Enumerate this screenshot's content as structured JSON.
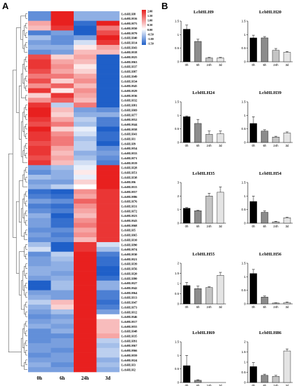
{
  "panels": {
    "a": "A",
    "b": "B"
  },
  "chart_data": [
    {
      "type": "heatmap",
      "columns": [
        "0h",
        "6h",
        "24h",
        "3d"
      ],
      "legend": {
        "ticks": [
          "2.00",
          "1.50",
          "1.00",
          "0.50",
          "0.00",
          "-0.50",
          "-1.00",
          "-1.50"
        ],
        "high_color": "#e8201f",
        "mid_color": "#ffffff",
        "low_color": "#1f5fc8"
      },
      "rows": [
        {
          "gene": "LcbHLH8",
          "values": [
            -0.7,
            2.0,
            -0.5,
            -0.5
          ]
        },
        {
          "gene": "LcbHLH16",
          "values": [
            -0.7,
            2.0,
            -0.5,
            -0.5
          ]
        },
        {
          "gene": "LcbHLH75",
          "values": [
            0.4,
            1.0,
            -0.9,
            1.0
          ]
        },
        {
          "gene": "LcbHLH50",
          "values": [
            0.3,
            0.9,
            -1.4,
            0.6
          ]
        },
        {
          "gene": "LcbHLH79",
          "values": [
            -0.8,
            -0.6,
            -1.0,
            0.8
          ]
        },
        {
          "gene": "LcbHLH40",
          "values": [
            -0.4,
            -0.7,
            -0.6,
            1.0
          ]
        },
        {
          "gene": "LcbHLH14",
          "values": [
            -0.6,
            -0.7,
            -0.2,
            0.9
          ]
        },
        {
          "gene": "LcbHLH43",
          "values": [
            -0.5,
            -0.5,
            0.1,
            0.4
          ]
        },
        {
          "gene": "LcbHLH18",
          "values": [
            -0.7,
            -0.6,
            0.3,
            0.3
          ]
        },
        {
          "gene": "LcbHLH25",
          "values": [
            0.8,
            0.2,
            0.4,
            -1.4
          ]
        },
        {
          "gene": "LcbHLH63",
          "values": [
            0.9,
            0.4,
            0.3,
            -1.4
          ]
        },
        {
          "gene": "LcbHLH37",
          "values": [
            0.9,
            0.5,
            0.1,
            -1.4
          ]
        },
        {
          "gene": "LcbHLH87",
          "values": [
            0.8,
            0.4,
            0.2,
            -1.4
          ]
        },
        {
          "gene": "LcbHLH49",
          "values": [
            0.6,
            0.6,
            0.4,
            -1.3
          ]
        },
        {
          "gene": "LcbHLH34",
          "values": [
            0.8,
            0.2,
            0.5,
            -1.4
          ]
        },
        {
          "gene": "LcbHLH45",
          "values": [
            0.5,
            0.7,
            0.3,
            -1.4
          ]
        },
        {
          "gene": "LcbHLH29",
          "values": [
            0.9,
            0.1,
            0.5,
            -1.4
          ]
        },
        {
          "gene": "LcbHLH36",
          "values": [
            0.2,
            0.9,
            0.4,
            -1.4
          ]
        },
        {
          "gene": "LcbHLH32",
          "values": [
            0.5,
            0.7,
            0.3,
            -1.4
          ]
        },
        {
          "gene": "LcbHLH81",
          "values": [
            0.9,
            -0.3,
            0.6,
            -1.0
          ]
        },
        {
          "gene": "LcbHLH69",
          "values": [
            1.0,
            0.3,
            -0.6,
            -0.7
          ]
        },
        {
          "gene": "LcbHLH77",
          "values": [
            1.0,
            0.2,
            -0.5,
            -0.5
          ]
        },
        {
          "gene": "LcbHLH52",
          "values": [
            0.9,
            0.4,
            -0.3,
            -0.8
          ]
        },
        {
          "gene": "LcbHLH44",
          "values": [
            0.8,
            0.6,
            -0.4,
            -0.8
          ]
        },
        {
          "gene": "LcbHLH58",
          "values": [
            1.0,
            0.2,
            -0.1,
            -1.0
          ]
        },
        {
          "gene": "LcbHLH41",
          "values": [
            0.9,
            0.5,
            -0.2,
            -0.9
          ]
        },
        {
          "gene": "LcbHLH1",
          "values": [
            0.9,
            0.6,
            -0.4,
            -0.9
          ]
        },
        {
          "gene": "LcbHLH9",
          "values": [
            0.8,
            0.6,
            -0.3,
            -1.0
          ]
        },
        {
          "gene": "LcbHLH54",
          "values": [
            0.9,
            0.4,
            -0.3,
            -0.7
          ]
        },
        {
          "gene": "LcbHLH33",
          "values": [
            0.9,
            0.3,
            -0.5,
            -0.6
          ]
        },
        {
          "gene": "LcbHLH71",
          "values": [
            0.8,
            0.4,
            -0.4,
            -0.7
          ]
        },
        {
          "gene": "LcbHLH19",
          "values": [
            0.9,
            0.3,
            -0.2,
            -0.8
          ]
        },
        {
          "gene": "LcbHLH28",
          "values": [
            -0.6,
            -0.4,
            -0.1,
            1.0
          ]
        },
        {
          "gene": "LcbHLH51",
          "values": [
            -0.7,
            -0.5,
            0.1,
            1.0
          ]
        },
        {
          "gene": "LcbHLH38",
          "values": [
            -0.4,
            -0.5,
            -0.1,
            1.0
          ]
        },
        {
          "gene": "LcbHLH6",
          "values": [
            -0.6,
            -0.6,
            0.2,
            1.0
          ]
        },
        {
          "gene": "LcbHLH15",
          "values": [
            -0.5,
            -0.3,
            0.0,
            1.0
          ]
        },
        {
          "gene": "LcbHLH57",
          "values": [
            -0.9,
            -1.0,
            0.5,
            0.9
          ]
        },
        {
          "gene": "LcbHLH86",
          "values": [
            -0.8,
            -0.9,
            0.4,
            0.9
          ]
        },
        {
          "gene": "LcbHLH76",
          "values": [
            -0.6,
            -0.7,
            0.7,
            0.9
          ]
        },
        {
          "gene": "LcbHLH31",
          "values": [
            -0.8,
            -0.9,
            0.5,
            0.9
          ]
        },
        {
          "gene": "LcbHLH72",
          "values": [
            -0.7,
            -0.8,
            0.4,
            0.9
          ]
        },
        {
          "gene": "LcbHLH23",
          "values": [
            -0.5,
            -1.2,
            0.3,
            0.9
          ]
        },
        {
          "gene": "LcbHLH43",
          "values": [
            -0.6,
            -0.9,
            0.5,
            0.9
          ]
        },
        {
          "gene": "LcbHLH68",
          "values": [
            -0.6,
            -0.9,
            0.6,
            0.9
          ]
        },
        {
          "gene": "LcbHLH5",
          "values": [
            -0.7,
            -0.7,
            0.4,
            0.9
          ]
        },
        {
          "gene": "LcbHLH65",
          "values": [
            -0.6,
            -0.8,
            0.5,
            0.9
          ]
        },
        {
          "gene": "LcbHLH10",
          "values": [
            -0.7,
            -0.7,
            0.3,
            0.9
          ]
        },
        {
          "gene": "LcbHLH90",
          "values": [
            -0.4,
            -1.2,
            0.9,
            -0.2
          ]
        },
        {
          "gene": "LcbHLH74",
          "values": [
            -0.2,
            -1.4,
            0.9,
            -0.4
          ]
        },
        {
          "gene": "LcbHLH30",
          "values": [
            -0.7,
            -0.3,
            1.0,
            -0.8
          ]
        },
        {
          "gene": "LcbHLH21",
          "values": [
            -0.6,
            -0.4,
            1.0,
            -0.9
          ]
        },
        {
          "gene": "LcbHLH39",
          "values": [
            -0.6,
            -0.5,
            1.0,
            -0.9
          ]
        },
        {
          "gene": "LcbHLH56",
          "values": [
            -0.5,
            -0.5,
            1.0,
            -1.0
          ]
        },
        {
          "gene": "LcbHLH20",
          "values": [
            -0.5,
            -0.6,
            1.0,
            -1.0
          ]
        },
        {
          "gene": "LcbHLH80",
          "values": [
            -0.6,
            -0.5,
            1.0,
            -0.9
          ]
        },
        {
          "gene": "LcbHLH27",
          "values": [
            -1.0,
            -0.4,
            1.0,
            -0.5
          ]
        },
        {
          "gene": "LcbHLH42",
          "values": [
            -1.0,
            -0.4,
            1.0,
            -0.5
          ]
        },
        {
          "gene": "LcbHLH64",
          "values": [
            -0.6,
            -0.6,
            1.0,
            -0.8
          ]
        },
        {
          "gene": "LcbHLH13",
          "values": [
            -0.5,
            -0.6,
            1.0,
            -0.8
          ]
        },
        {
          "gene": "LcbHLH47",
          "values": [
            -0.3,
            0.3,
            1.0,
            -0.9
          ]
        },
        {
          "gene": "LcbHLH73",
          "values": [
            -0.5,
            0.2,
            1.0,
            -0.8
          ]
        },
        {
          "gene": "LcbHLH12",
          "values": [
            -0.6,
            -0.4,
            1.0,
            -0.6
          ]
        },
        {
          "gene": "LcbHLH46",
          "values": [
            -0.7,
            -0.6,
            1.0,
            0.0
          ]
        },
        {
          "gene": "LcbHLH17",
          "values": [
            -0.6,
            -0.5,
            1.0,
            0.3
          ]
        },
        {
          "gene": "LcbHLH55",
          "values": [
            -0.5,
            -0.6,
            1.0,
            0.3
          ]
        },
        {
          "gene": "LcbHLH48",
          "values": [
            -0.7,
            -0.5,
            1.0,
            0.3
          ]
        },
        {
          "gene": "LcbHLH35",
          "values": [
            -0.7,
            -0.7,
            1.0,
            0.4
          ]
        },
        {
          "gene": "LcbHLH91",
          "values": [
            -0.7,
            -0.6,
            1.0,
            -0.3
          ]
        },
        {
          "gene": "LcbHLH67",
          "values": [
            -0.6,
            -0.6,
            1.0,
            -0.4
          ]
        },
        {
          "gene": "LcbHLH66",
          "values": [
            -0.6,
            -0.7,
            1.0,
            -0.3
          ]
        },
        {
          "gene": "LcbHLH59",
          "values": [
            -0.7,
            -0.6,
            1.0,
            -0.3
          ]
        },
        {
          "gene": "LcbHLH24",
          "values": [
            -0.6,
            -0.6,
            1.0,
            -0.5
          ]
        },
        {
          "gene": "LcbHLH3",
          "values": [
            -0.5,
            -0.7,
            1.0,
            -0.4
          ]
        },
        {
          "gene": "LcbHLH2",
          "values": [
            -0.6,
            -0.6,
            1.0,
            -0.5
          ]
        }
      ]
    },
    {
      "type": "bar",
      "title": "LcbHLH9",
      "categories": [
        "0h",
        "6h",
        "24h",
        "3d"
      ],
      "values": [
        1.2,
        0.75,
        0.14,
        0.14
      ],
      "errors": [
        0.15,
        0.08,
        0.02,
        0.02
      ],
      "colors": [
        "#000000",
        "#8c8c8c",
        "#c4c4c4",
        "#e4e4e4"
      ],
      "ylim": [
        0,
        1.5
      ],
      "yticks": [
        0,
        0.5,
        1,
        1.5
      ]
    },
    {
      "type": "bar",
      "title": "LcbHLH20",
      "categories": [
        "0h",
        "6h",
        "24h",
        "3d"
      ],
      "values": [
        0.88,
        0.88,
        0.42,
        0.35
      ],
      "errors": [
        0.1,
        0.05,
        0.07,
        0.03
      ],
      "colors": [
        "#000000",
        "#8c8c8c",
        "#c4c4c4",
        "#e4e4e4"
      ],
      "ylim": [
        0,
        1.5
      ],
      "yticks": [
        0,
        0.5,
        1,
        1.5
      ]
    },
    {
      "type": "bar",
      "title": "LcbHLH24",
      "categories": [
        "0h",
        "6h",
        "24h",
        "3d"
      ],
      "values": [
        0.95,
        0.7,
        0.3,
        0.32
      ],
      "errors": [
        0.03,
        0.15,
        0.12,
        0.1
      ],
      "colors": [
        "#000000",
        "#8c8c8c",
        "#c4c4c4",
        "#e4e4e4"
      ],
      "ylim": [
        0,
        1.5
      ],
      "yticks": [
        0,
        0.5,
        1,
        1.5
      ]
    },
    {
      "type": "bar",
      "title": "LcbHLH39",
      "categories": [
        "0h",
        "6h",
        "24h",
        "3d"
      ],
      "values": [
        0.7,
        0.42,
        0.2,
        0.35
      ],
      "errors": [
        0.25,
        0.05,
        0.03,
        0.04
      ],
      "colors": [
        "#000000",
        "#8c8c8c",
        "#c4c4c4",
        "#e4e4e4"
      ],
      "ylim": [
        0,
        1.5
      ],
      "yticks": [
        0,
        0.5,
        1,
        1.5
      ]
    },
    {
      "type": "bar",
      "title": "LcbHLH35",
      "categories": [
        "0h",
        "6h",
        "24h",
        "3d"
      ],
      "values": [
        1.1,
        0.92,
        2.0,
        2.28
      ],
      "errors": [
        0.05,
        0.03,
        0.2,
        0.4
      ],
      "colors": [
        "#000000",
        "#8c8c8c",
        "#c4c4c4",
        "#e4e4e4"
      ],
      "ylim": [
        0,
        3
      ],
      "yticks": [
        0,
        1,
        2,
        3
      ]
    },
    {
      "type": "bar",
      "title": "LcbHLH54",
      "categories": [
        "0h",
        "6h",
        "24h",
        "3d"
      ],
      "values": [
        0.8,
        0.4,
        0.05,
        0.2
      ],
      "errors": [
        0.2,
        0.06,
        0.02,
        0.02
      ],
      "colors": [
        "#000000",
        "#8c8c8c",
        "#c4c4c4",
        "#e4e4e4"
      ],
      "ylim": [
        0,
        1.5
      ],
      "yticks": [
        0,
        0.5,
        1,
        1.5
      ]
    },
    {
      "type": "bar",
      "title": "LcbHLH55",
      "categories": [
        "0h",
        "6h",
        "24h",
        "3d"
      ],
      "values": [
        0.9,
        0.75,
        0.8,
        1.4
      ],
      "errors": [
        0.15,
        0.12,
        0.04,
        0.15
      ],
      "colors": [
        "#000000",
        "#8c8c8c",
        "#c4c4c4",
        "#e4e4e4"
      ],
      "ylim": [
        0,
        2
      ],
      "yticks": [
        0,
        0.5,
        1,
        1.5,
        2
      ]
    },
    {
      "type": "bar",
      "title": "LcbHLH56",
      "categories": [
        "0h",
        "6h",
        "24h",
        "3d"
      ],
      "values": [
        1.12,
        0.25,
        0.03,
        0.05
      ],
      "errors": [
        0.15,
        0.04,
        0.01,
        0.02
      ],
      "colors": [
        "#000000",
        "#8c8c8c",
        "#c4c4c4",
        "#e4e4e4"
      ],
      "ylim": [
        0,
        1.5
      ],
      "yticks": [
        0,
        0.5,
        1,
        1.5
      ]
    },
    {
      "type": "bar",
      "title": "LcbHLH69",
      "categories": [
        "0h",
        "6h",
        "24h",
        "3d"
      ],
      "values": [
        0.62,
        0.08,
        0.0,
        0.0
      ],
      "errors": [
        0.38,
        0.02,
        0,
        0
      ],
      "colors": [
        "#000000",
        "#8c8c8c",
        "#c4c4c4",
        "#e4e4e4"
      ],
      "ylim": [
        0,
        1.5
      ],
      "yticks": [
        0,
        0.5,
        1,
        1.5
      ]
    },
    {
      "type": "bar",
      "title": "LcbHLH86",
      "categories": [
        "0h",
        "6h",
        "24h",
        "3d"
      ],
      "values": [
        0.78,
        0.35,
        0.3,
        1.55
      ],
      "errors": [
        0.2,
        0.06,
        0.05,
        0.1
      ],
      "colors": [
        "#000000",
        "#8c8c8c",
        "#c4c4c4",
        "#e4e4e4"
      ],
      "ylim": [
        0,
        2
      ],
      "yticks": [
        0,
        0.5,
        1,
        1.5,
        2
      ]
    }
  ]
}
